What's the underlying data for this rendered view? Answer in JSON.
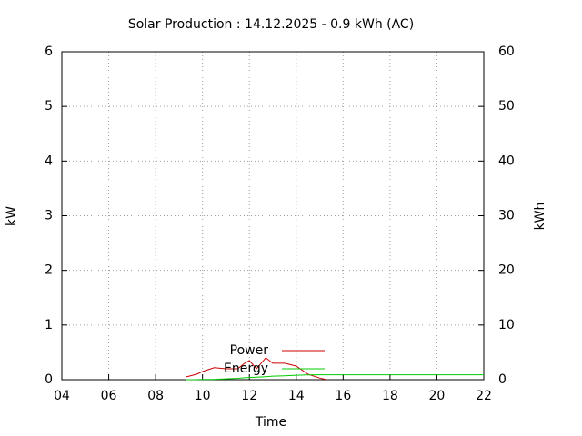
{
  "chart_data": {
    "type": "line",
    "title": "Solar Production : 14.12.2025 - 0.9 kWh (AC)",
    "xlabel": "Time",
    "ylabel": "kW",
    "y2label": "kWh",
    "x": [
      9.3,
      9.75,
      10,
      10.5,
      11,
      11.5,
      11.8,
      12,
      12.3,
      12.7,
      13,
      13.5,
      14,
      14.5,
      15,
      15.3,
      16,
      18,
      20,
      22
    ],
    "series": [
      {
        "name": "Power",
        "color": "#cc0000",
        "axis": "y",
        "values": [
          0.05,
          0.1,
          0.15,
          0.22,
          0.2,
          0.2,
          0.3,
          0.35,
          0.2,
          0.4,
          0.3,
          0.3,
          0.25,
          0.1,
          0.03,
          0,
          null,
          null,
          null,
          null
        ]
      },
      {
        "name": "Energy",
        "color": "#00cc00",
        "axis": "y2",
        "values": [
          0,
          0.01,
          0.05,
          0.07,
          0.15,
          0.25,
          0.35,
          0.4,
          0.45,
          0.55,
          0.65,
          0.72,
          0.82,
          0.87,
          0.9,
          0.9,
          0.9,
          0.9,
          0.9,
          0.9
        ]
      }
    ],
    "xlim": [
      4,
      22
    ],
    "xticks": [
      {
        "value": 4,
        "label": "04"
      },
      {
        "value": 6,
        "label": "06"
      },
      {
        "value": 8,
        "label": "08"
      },
      10,
      12,
      14,
      16,
      18,
      20,
      22
    ],
    "ylim": [
      0,
      6
    ],
    "yticks": [
      0,
      1,
      2,
      3,
      4,
      5,
      6
    ],
    "y2lim": [
      0,
      60
    ],
    "y2ticks": [
      0,
      10,
      20,
      30,
      40,
      50,
      60
    ],
    "grid": true,
    "legend": "bottom"
  }
}
